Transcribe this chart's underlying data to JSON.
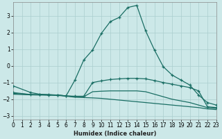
{
  "xlabel": "Humidex (Indice chaleur)",
  "xlim": [
    0,
    23
  ],
  "ylim": [
    -3.2,
    3.8
  ],
  "yticks": [
    -3,
    -2,
    -1,
    0,
    1,
    2,
    3
  ],
  "xticks": [
    0,
    1,
    2,
    3,
    4,
    5,
    6,
    7,
    8,
    9,
    10,
    11,
    12,
    13,
    14,
    15,
    16,
    17,
    18,
    19,
    20,
    21,
    22,
    23
  ],
  "background_color": "#cce8e8",
  "grid_color": "#aacece",
  "line_color": "#1a6e64",
  "line1_x": [
    0,
    2,
    3,
    4,
    5,
    6,
    7,
    8,
    9,
    10,
    11,
    12,
    13,
    14,
    15,
    16,
    17,
    18,
    19,
    20,
    21,
    22,
    23
  ],
  "line1_y": [
    -1.2,
    -1.6,
    -1.7,
    -1.72,
    -1.75,
    -1.8,
    -0.85,
    0.35,
    0.95,
    1.95,
    2.65,
    2.9,
    3.5,
    3.62,
    2.1,
    0.95,
    -0.05,
    -0.55,
    -0.85,
    -1.15,
    -1.75,
    -2.2,
    -2.35
  ],
  "line2_x": [
    0,
    2,
    3,
    4,
    5,
    6,
    7,
    8,
    9,
    10,
    11,
    12,
    13,
    14,
    15,
    16,
    17,
    18,
    19,
    20,
    21,
    22,
    23
  ],
  "line2_y": [
    -1.6,
    -1.72,
    -1.73,
    -1.74,
    -1.75,
    -1.8,
    -1.82,
    -1.82,
    -1.0,
    -0.9,
    -0.82,
    -0.78,
    -0.75,
    -0.75,
    -0.78,
    -0.88,
    -1.0,
    -1.1,
    -1.2,
    -1.3,
    -1.5,
    -2.45,
    -2.5
  ],
  "line3_x": [
    0,
    2,
    3,
    4,
    5,
    6,
    7,
    8,
    9,
    10,
    11,
    12,
    13,
    14,
    15,
    16,
    17,
    18,
    19,
    20,
    21,
    22,
    23
  ],
  "line3_y": [
    -1.65,
    -1.72,
    -1.73,
    -1.74,
    -1.75,
    -1.8,
    -1.85,
    -1.85,
    -1.55,
    -1.52,
    -1.5,
    -1.5,
    -1.5,
    -1.5,
    -1.55,
    -1.7,
    -1.85,
    -2.0,
    -2.1,
    -2.2,
    -2.35,
    -2.5,
    -2.55
  ],
  "line4_x": [
    0,
    2,
    3,
    4,
    5,
    6,
    7,
    8,
    9,
    10,
    11,
    12,
    13,
    14,
    15,
    16,
    17,
    18,
    19,
    20,
    21,
    22,
    23
  ],
  "line4_y": [
    -1.7,
    -1.74,
    -1.75,
    -1.76,
    -1.77,
    -1.82,
    -1.88,
    -1.9,
    -1.92,
    -1.95,
    -2.0,
    -2.05,
    -2.1,
    -2.15,
    -2.2,
    -2.25,
    -2.3,
    -2.35,
    -2.4,
    -2.45,
    -2.5,
    -2.58,
    -2.62
  ]
}
